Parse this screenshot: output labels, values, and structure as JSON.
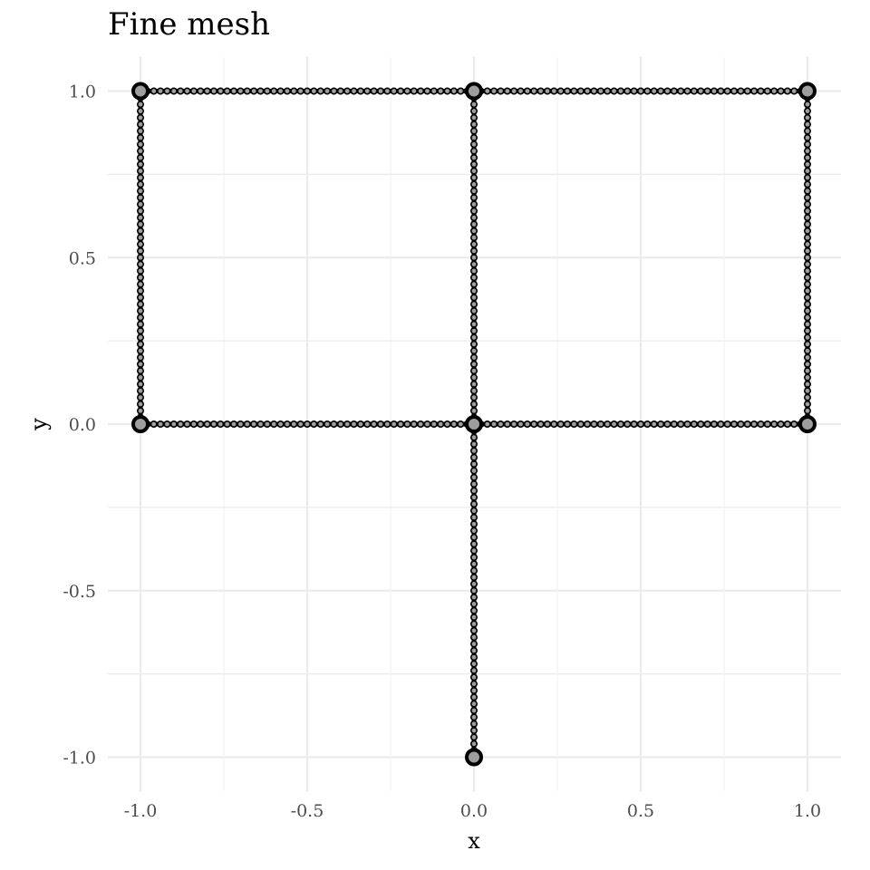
{
  "chart_data": {
    "type": "line",
    "title": "Fine mesh",
    "xlabel": "x",
    "ylabel": "y",
    "xlim": [
      -1.08,
      1.1
    ],
    "ylim": [
      -1.1,
      1.1
    ],
    "x_ticks": [
      -1.0,
      -0.5,
      0.0,
      0.5,
      1.0
    ],
    "y_ticks": [
      -1.0,
      -0.5,
      0.0,
      0.5,
      1.0
    ],
    "x_tick_labels": [
      "-1.0",
      "-0.5",
      "0.0",
      "0.5",
      "1.0"
    ],
    "y_tick_labels": [
      "-1.0",
      "-0.5",
      "0.0",
      "0.5",
      "1.0"
    ],
    "grid": true,
    "legend": "none",
    "mesh_step": 0.02,
    "edges": [
      {
        "from": [
          -1.0,
          1.0
        ],
        "to": [
          0.0,
          1.0
        ]
      },
      {
        "from": [
          0.0,
          1.0
        ],
        "to": [
          1.0,
          1.0
        ]
      },
      {
        "from": [
          -1.0,
          0.0
        ],
        "to": [
          -1.0,
          1.0
        ]
      },
      {
        "from": [
          0.0,
          -1.0
        ],
        "to": [
          0.0,
          0.0
        ]
      },
      {
        "from": [
          0.0,
          0.0
        ],
        "to": [
          0.0,
          1.0
        ]
      },
      {
        "from": [
          1.0,
          0.0
        ],
        "to": [
          1.0,
          1.0
        ]
      },
      {
        "from": [
          -1.0,
          0.0
        ],
        "to": [
          0.0,
          0.0
        ]
      },
      {
        "from": [
          0.0,
          0.0
        ],
        "to": [
          1.0,
          0.0
        ]
      }
    ],
    "nodes": [
      [
        -1.0,
        1.0
      ],
      [
        0.0,
        1.0
      ],
      [
        1.0,
        1.0
      ],
      [
        -1.0,
        0.0
      ],
      [
        0.0,
        0.0
      ],
      [
        1.0,
        0.0
      ],
      [
        0.0,
        -1.0
      ]
    ],
    "colors": {
      "line": "#000000",
      "node_fill": "#9e9e9e",
      "grid_major": "#ebebeb",
      "grid_minor": "#f3f3f3"
    }
  }
}
